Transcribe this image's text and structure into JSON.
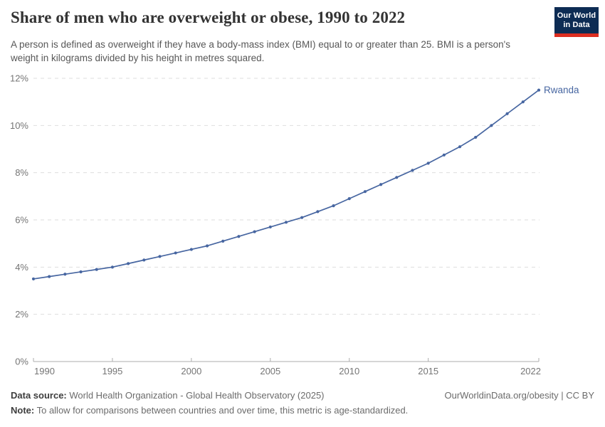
{
  "header": {
    "title": "Share of men who are overweight or obese, 1990 to 2022",
    "subtitle": "A person is defined as overweight if they have a body-mass index (BMI) equal to or greater than 25. BMI is a person's weight in kilograms divided by his height in metres squared."
  },
  "logo": {
    "line1": "Our World",
    "line2": "in Data",
    "bg_color": "#0d2c54",
    "stripe_color": "#dc2e21"
  },
  "chart_data": {
    "type": "line",
    "title": "Share of men who are overweight or obese, 1990 to 2022",
    "x": [
      1990,
      1991,
      1992,
      1993,
      1994,
      1995,
      1996,
      1997,
      1998,
      1999,
      2000,
      2001,
      2002,
      2003,
      2004,
      2005,
      2006,
      2007,
      2008,
      2009,
      2010,
      2011,
      2012,
      2013,
      2014,
      2015,
      2016,
      2017,
      2018,
      2019,
      2020,
      2021,
      2022
    ],
    "series": [
      {
        "name": "Rwanda",
        "color": "#4766a1",
        "values": [
          3.5,
          3.6,
          3.7,
          3.8,
          3.9,
          4.0,
          4.15,
          4.3,
          4.45,
          4.6,
          4.75,
          4.9,
          5.1,
          5.3,
          5.5,
          5.7,
          5.9,
          6.1,
          6.35,
          6.6,
          6.9,
          7.2,
          7.5,
          7.8,
          8.1,
          8.4,
          8.75,
          9.1,
          9.5,
          10.0,
          10.5,
          11.0,
          11.5
        ]
      }
    ],
    "xlabel": "",
    "ylabel": "",
    "ylim": [
      0,
      12
    ],
    "yticks": [
      {
        "value": 0,
        "label": "0%"
      },
      {
        "value": 2,
        "label": "2%"
      },
      {
        "value": 4,
        "label": "4%"
      },
      {
        "value": 6,
        "label": "6%"
      },
      {
        "value": 8,
        "label": "8%"
      },
      {
        "value": 10,
        "label": "10%"
      },
      {
        "value": 12,
        "label": "12%"
      }
    ],
    "xticks": [
      1990,
      1995,
      2000,
      2005,
      2010,
      2015,
      2022
    ],
    "grid": "horizontal-dashed",
    "legend_position": "end-of-line-label",
    "end_label": "Rwanda",
    "styles": {
      "grid_color": "#dedede",
      "axis_color": "#adadad",
      "tick_label_color": "#757575"
    }
  },
  "footer": {
    "datasource_label": "Data source:",
    "datasource_text": " World Health Organization - Global Health Observatory (2025)",
    "note_label": "Note:",
    "note_text": " To allow for comparisons between countries and over time, this metric is age-standardized.",
    "link": "OurWorldinData.org/obesity | CC BY"
  }
}
